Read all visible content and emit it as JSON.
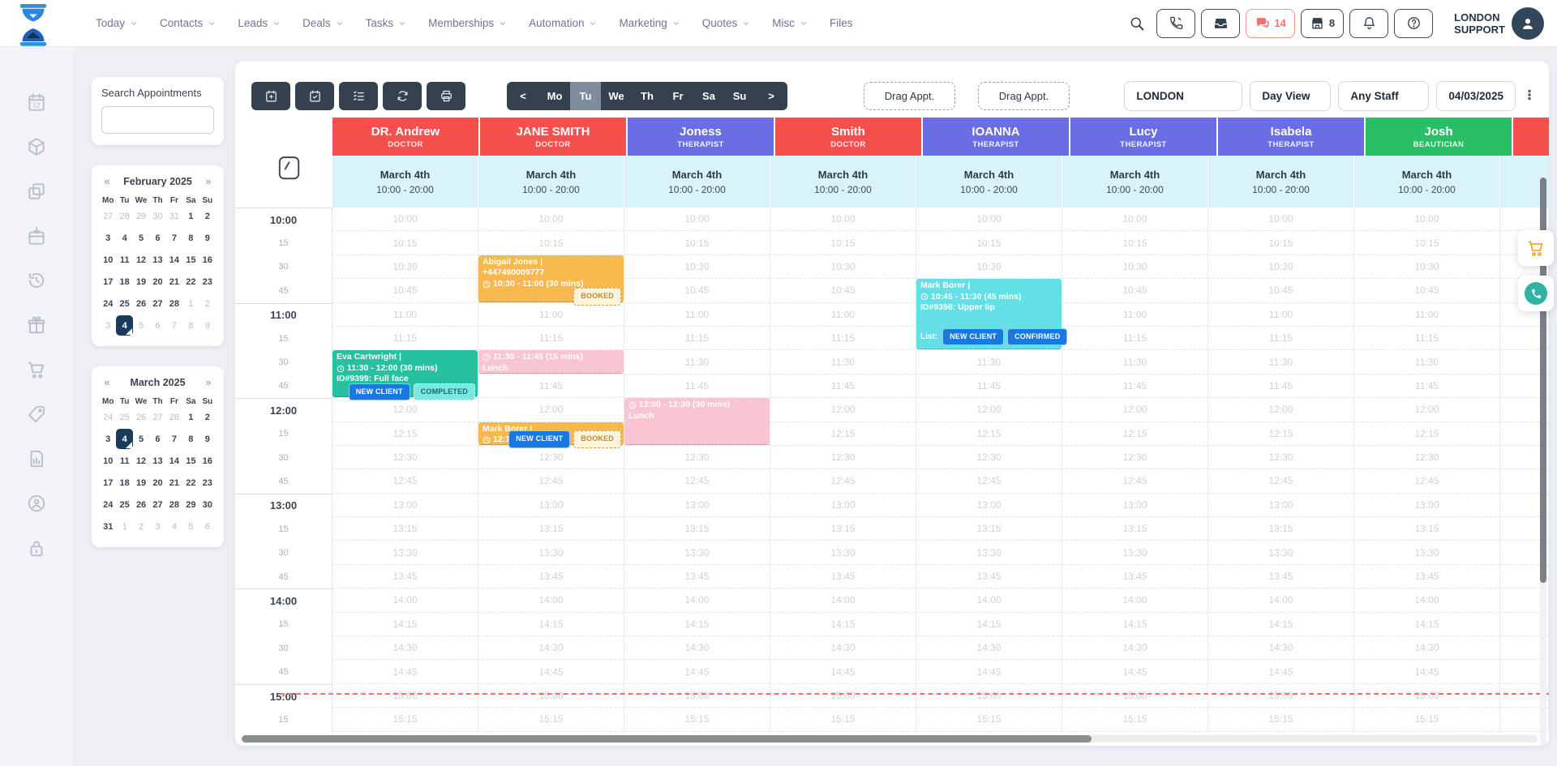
{
  "header": {
    "nav_items": [
      {
        "label": "Today",
        "dropdown": true
      },
      {
        "label": "Contacts",
        "dropdown": true
      },
      {
        "label": "Leads",
        "dropdown": true
      },
      {
        "label": "Deals",
        "dropdown": true
      },
      {
        "label": "Tasks",
        "dropdown": true
      },
      {
        "label": "Memberships",
        "dropdown": true
      },
      {
        "label": "Automation",
        "dropdown": true
      },
      {
        "label": "Marketing",
        "dropdown": true
      },
      {
        "label": "Quotes",
        "dropdown": true
      },
      {
        "label": "Misc",
        "dropdown": true
      },
      {
        "label": "Files",
        "dropdown": false
      }
    ],
    "actions": [
      {
        "icon": "phone",
        "style": "dark",
        "count": ""
      },
      {
        "icon": "inbox",
        "style": "dark",
        "count": ""
      },
      {
        "icon": "chat",
        "style": "red",
        "count": "14"
      },
      {
        "icon": "store",
        "style": "dark",
        "count": "8"
      },
      {
        "icon": "bell",
        "style": "dark",
        "count": ""
      },
      {
        "icon": "help",
        "style": "dark",
        "count": ""
      }
    ],
    "user_label_line1": "LONDON",
    "user_label_line2": "SUPPORT"
  },
  "sidebar": {
    "icons": [
      "calendar-date",
      "package",
      "copy",
      "calendar-import",
      "history",
      "gift",
      "cart",
      "price-tag",
      "report",
      "user-card",
      "lock"
    ]
  },
  "search_panel": {
    "title": "Search Appointments",
    "input_value": ""
  },
  "mini_calendars": [
    {
      "title": "February 2025",
      "prev": "«",
      "next": "»",
      "weekdays": [
        "Mo",
        "Tu",
        "We",
        "Th",
        "Fr",
        "Sa",
        "Su"
      ],
      "rows": [
        [
          {
            "d": "27",
            "muted": true
          },
          {
            "d": "28",
            "muted": true
          },
          {
            "d": "29",
            "muted": true
          },
          {
            "d": "30",
            "muted": true
          },
          {
            "d": "31",
            "muted": true
          },
          {
            "d": "1"
          },
          {
            "d": "2"
          }
        ],
        [
          {
            "d": "3"
          },
          {
            "d": "4"
          },
          {
            "d": "5"
          },
          {
            "d": "6"
          },
          {
            "d": "7"
          },
          {
            "d": "8"
          },
          {
            "d": "9"
          }
        ],
        [
          {
            "d": "10"
          },
          {
            "d": "11"
          },
          {
            "d": "12"
          },
          {
            "d": "13"
          },
          {
            "d": "14"
          },
          {
            "d": "15"
          },
          {
            "d": "16"
          }
        ],
        [
          {
            "d": "17"
          },
          {
            "d": "18"
          },
          {
            "d": "19"
          },
          {
            "d": "20"
          },
          {
            "d": "21"
          },
          {
            "d": "22"
          },
          {
            "d": "23"
          }
        ],
        [
          {
            "d": "24"
          },
          {
            "d": "25"
          },
          {
            "d": "26"
          },
          {
            "d": "27"
          },
          {
            "d": "28"
          },
          {
            "d": "1",
            "muted": true
          },
          {
            "d": "2",
            "muted": true
          }
        ],
        [
          {
            "d": "3",
            "muted": true
          },
          {
            "d": "4",
            "muted": true,
            "selected": true
          },
          {
            "d": "5",
            "muted": true
          },
          {
            "d": "6",
            "muted": true
          },
          {
            "d": "7",
            "muted": true
          },
          {
            "d": "8",
            "muted": true
          },
          {
            "d": "9",
            "muted": true
          }
        ]
      ]
    },
    {
      "title": "March 2025",
      "prev": "«",
      "next": "»",
      "weekdays": [
        "Mo",
        "Tu",
        "We",
        "Th",
        "Fr",
        "Sa",
        "Su"
      ],
      "rows": [
        [
          {
            "d": "24",
            "muted": true
          },
          {
            "d": "25",
            "muted": true
          },
          {
            "d": "26",
            "muted": true
          },
          {
            "d": "27",
            "muted": true
          },
          {
            "d": "28",
            "muted": true
          },
          {
            "d": "1"
          },
          {
            "d": "2"
          }
        ],
        [
          {
            "d": "3"
          },
          {
            "d": "4",
            "selected": true
          },
          {
            "d": "5"
          },
          {
            "d": "6"
          },
          {
            "d": "7"
          },
          {
            "d": "8"
          },
          {
            "d": "9"
          }
        ],
        [
          {
            "d": "10"
          },
          {
            "d": "11"
          },
          {
            "d": "12"
          },
          {
            "d": "13"
          },
          {
            "d": "14"
          },
          {
            "d": "15"
          },
          {
            "d": "16"
          }
        ],
        [
          {
            "d": "17"
          },
          {
            "d": "18"
          },
          {
            "d": "19"
          },
          {
            "d": "20"
          },
          {
            "d": "21"
          },
          {
            "d": "22"
          },
          {
            "d": "23"
          }
        ],
        [
          {
            "d": "24"
          },
          {
            "d": "25"
          },
          {
            "d": "26"
          },
          {
            "d": "27"
          },
          {
            "d": "28"
          },
          {
            "d": "29"
          },
          {
            "d": "30"
          }
        ],
        [
          {
            "d": "31"
          },
          {
            "d": "1",
            "muted": true
          },
          {
            "d": "2",
            "muted": true
          },
          {
            "d": "3",
            "muted": true
          },
          {
            "d": "4",
            "muted": true
          },
          {
            "d": "5",
            "muted": true
          },
          {
            "d": "6",
            "muted": true
          }
        ]
      ]
    }
  ],
  "toolbar": {
    "icon_buttons": [
      "calendar-plus",
      "calendar-check",
      "checklist",
      "refresh",
      "print"
    ],
    "day_nav": {
      "prev": "<",
      "days": [
        "Mo",
        "Tu",
        "We",
        "Th",
        "Fr",
        "Sa",
        "Su"
      ],
      "active": "Tu",
      "next": ">"
    },
    "drag_buttons": [
      "Drag Appt.",
      "Drag Appt."
    ],
    "selects": [
      "LONDON",
      "Day View",
      "Any Staff"
    ],
    "date": "04/03/2025"
  },
  "schedule": {
    "staff": [
      {
        "name": "DR. Andrew",
        "role": "DOCTOR",
        "color_key": "doctor"
      },
      {
        "name": "JANE SMITH",
        "role": "DOCTOR",
        "color_key": "doctor"
      },
      {
        "name": "Joness",
        "role": "THERAPIST",
        "color_key": "therapist"
      },
      {
        "name": "Smith",
        "role": "DOCTOR",
        "color_key": "doctor"
      },
      {
        "name": "IOANNA",
        "role": "THERAPIST",
        "color_key": "therapist"
      },
      {
        "name": "Lucy",
        "role": "THERAPIST",
        "color_key": "therapist"
      },
      {
        "name": "Isabela",
        "role": "THERAPIST",
        "color_key": "therapist"
      },
      {
        "name": "Josh",
        "role": "BEAUTICIAN",
        "color_key": "beautician"
      }
    ],
    "partial_column_color_key": "doctor",
    "date_label": "March 4th",
    "hours_label": "10:00 - 20:00",
    "times": [
      "10:00",
      "10:15",
      "10:30",
      "10:45",
      "11:00",
      "11:15",
      "11:30",
      "11:45",
      "12:00",
      "12:15",
      "12:30",
      "12:45",
      "13:00",
      "13:15",
      "13:30",
      "13:45",
      "14:00",
      "14:15",
      "14:30",
      "14:45",
      "15:00",
      "15:15"
    ],
    "appointments": [
      {
        "staff": "DR. Andrew",
        "col": 0,
        "row": 6,
        "span": 2,
        "variant": "teal",
        "title": "Eva Cartwright |",
        "time": "11:30 - 12:00 (30 mins)",
        "detail": "ID#9399: Full face",
        "badge_pos": "out",
        "badges": [
          {
            "label": "NEW CLIENT",
            "variant": "blue"
          },
          {
            "label": "COMPLETED",
            "variant": "teal-light"
          }
        ]
      },
      {
        "staff": "JANE SMITH",
        "col": 1,
        "row": 2,
        "span": 2,
        "variant": "orange",
        "title": "Abigail Jones |",
        "subtitle": "+447490009777",
        "time": "10:30 - 11:00 (30 mins)",
        "badge_pos": "out",
        "badges": [
          {
            "label": "BOOKED",
            "variant": "cream"
          }
        ]
      },
      {
        "staff": "JANE SMITH",
        "col": 1,
        "row": 6,
        "span": 1,
        "variant": "pink",
        "time": "11:30 - 11:45 (15 mins)",
        "detail": "Lunch",
        "badges": []
      },
      {
        "staff": "JANE SMITH",
        "col": 1,
        "row": 9,
        "span": 1,
        "variant": "orange",
        "title": "Mark Borer |",
        "time": "12:15 - ",
        "badge_pos": "out",
        "badges": [
          {
            "label": "NEW CLIENT",
            "variant": "blue"
          },
          {
            "label": "BOOKED",
            "variant": "cream"
          }
        ]
      },
      {
        "staff": "Joness",
        "col": 2,
        "row": 8,
        "span": 2,
        "variant": "pink",
        "time": "12:00 - 12:30 (30 mins)",
        "detail": "Lunch",
        "badges": []
      },
      {
        "staff": "IOANNA",
        "col": 4,
        "row": 3,
        "span": 3,
        "variant": "cyan",
        "title": "Mark Borer |",
        "time": "10:45 - 11:30 (45 mins)",
        "detail": "ID#9398: Upper lip",
        "list_label": "List:",
        "badge_pos": "in-left",
        "badges": [
          {
            "label": "NEW CLIENT",
            "variant": "blue"
          },
          {
            "label": "CONFIRMED",
            "variant": "blue"
          }
        ]
      }
    ],
    "current_time_row_index": 20
  },
  "colors": {
    "doctor": "#f5504e",
    "therapist": "#6b6de4",
    "beautician": "#2abf66",
    "accent_dark": "#35414e",
    "chat_red": "#f4726c",
    "badge_blue": "#1a79e0",
    "appt_orange": "#f7b84e",
    "appt_pink": "#f9c5d2",
    "appt_teal": "#27c0a1",
    "appt_cyan": "#63e0e5"
  }
}
